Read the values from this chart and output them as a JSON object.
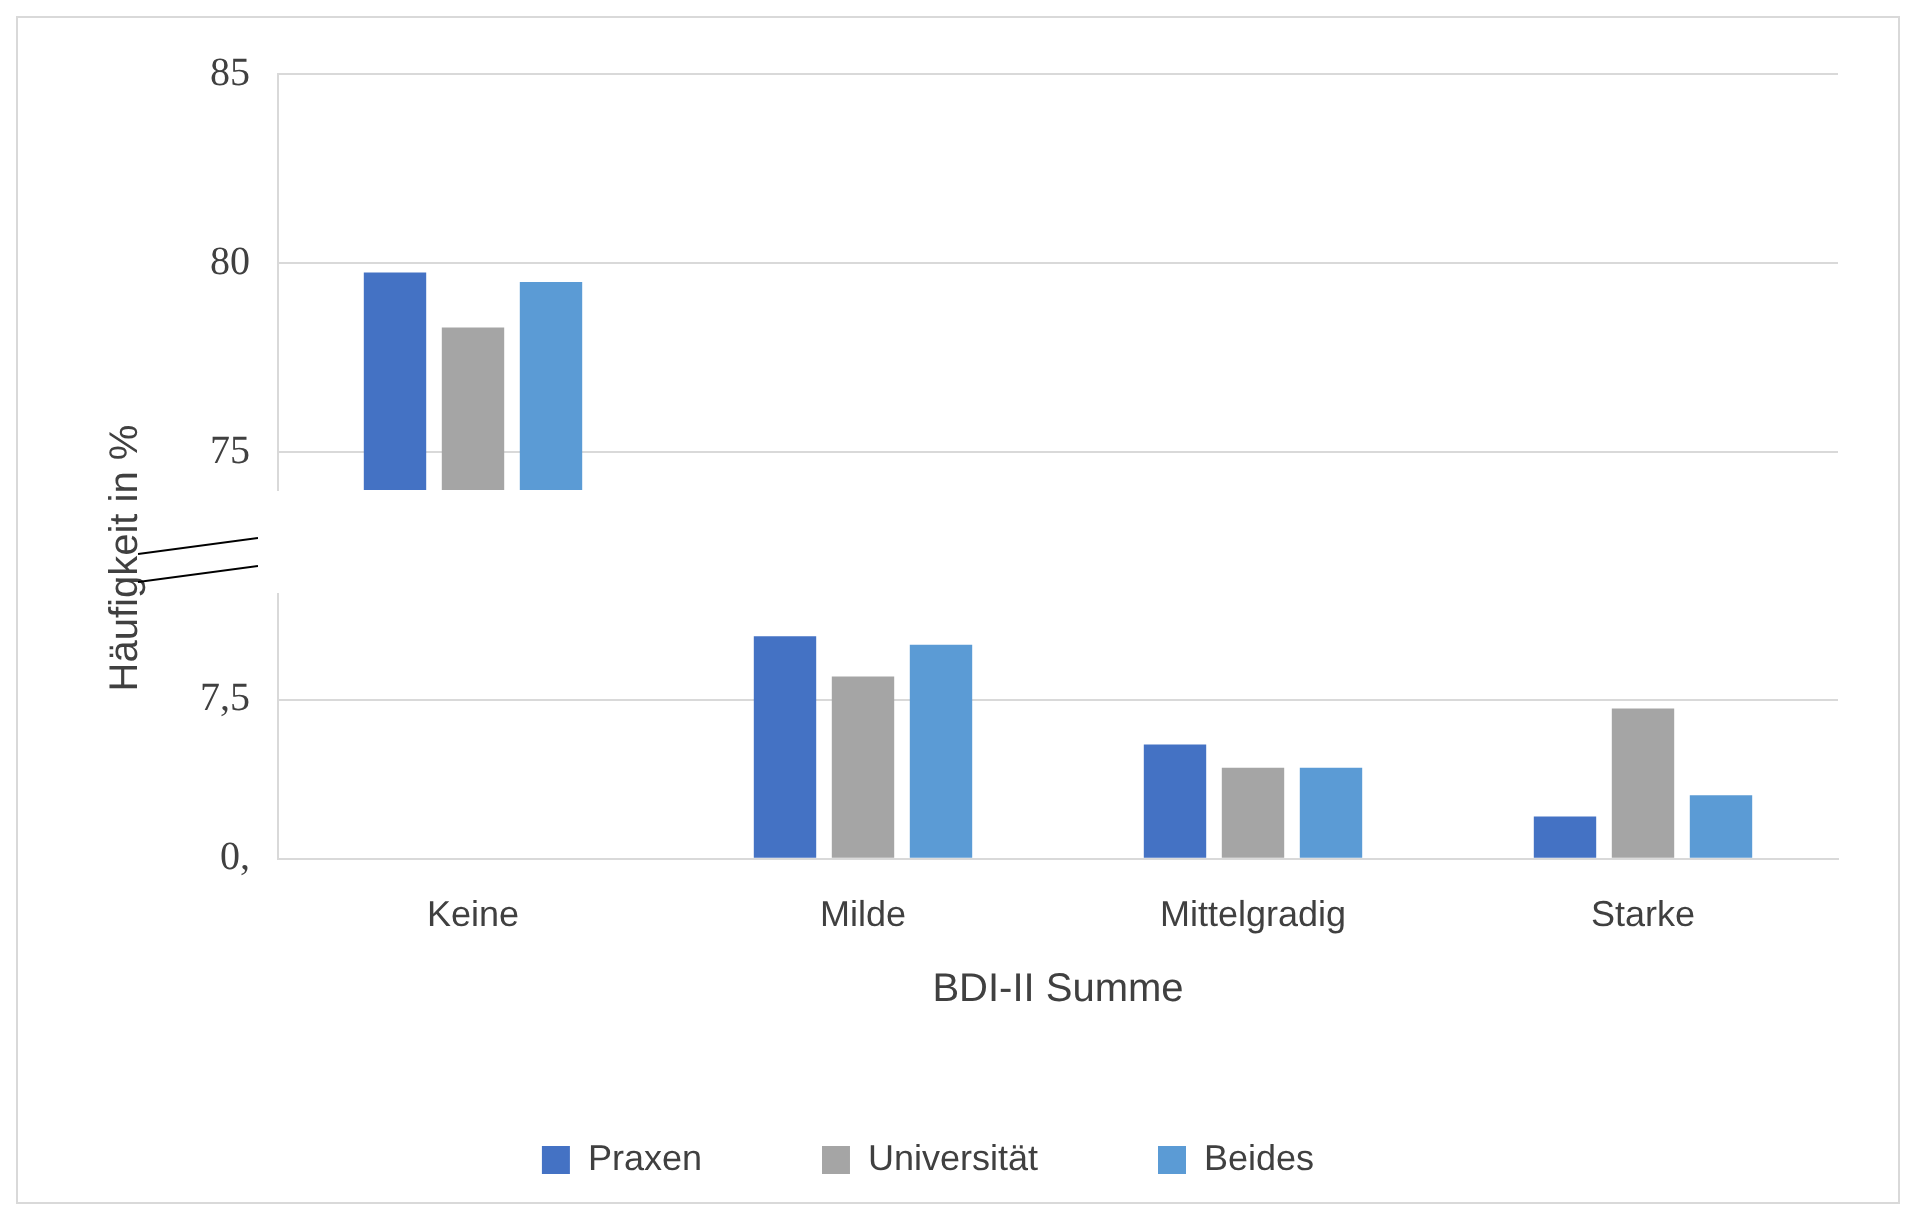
{
  "chart_data": [
    {
      "type": "bar",
      "categories": [
        null,
        null,
        null,
        null
      ],
      "series": [
        {
          "color": "#4472c4",
          "values": [
            79.75,
            null,
            null,
            null
          ]
        },
        {
          "color": "#a5a5a5",
          "values": [
            78.3,
            null,
            null,
            null
          ]
        },
        {
          "color": "#5b9bd5",
          "values": [
            79.5,
            null,
            null,
            null
          ]
        }
      ],
      "ylim": [
        74,
        85
      ],
      "yticks": [
        75,
        80,
        85
      ],
      "grid": "y",
      "tick_labels": "y"
    },
    {
      "type": "bar",
      "categories": [
        "Keine",
        "Milde",
        "Mittelgradig",
        "Starke"
      ],
      "xlabel": "BDI-II Summe",
      "ylabel": "Häufigkeit in %",
      "series": [
        {
          "name": "Praxen",
          "color": "#4472c4",
          "values": [
            null,
            10.5,
            5.4,
            2.0
          ]
        },
        {
          "name": "Universität",
          "color": "#a5a5a5",
          "values": [
            null,
            8.6,
            4.3,
            7.1
          ]
        },
        {
          "name": "Beides",
          "color": "#5b9bd5",
          "values": [
            null,
            10.1,
            4.3,
            3.0
          ]
        }
      ],
      "ylim": [
        0,
        12.5
      ],
      "yticks": [
        {
          "value": 0,
          "label": "0,"
        },
        {
          "value": 7.5,
          "label": "7,5"
        }
      ],
      "grid": "y",
      "legend": "bottom"
    }
  ]
}
